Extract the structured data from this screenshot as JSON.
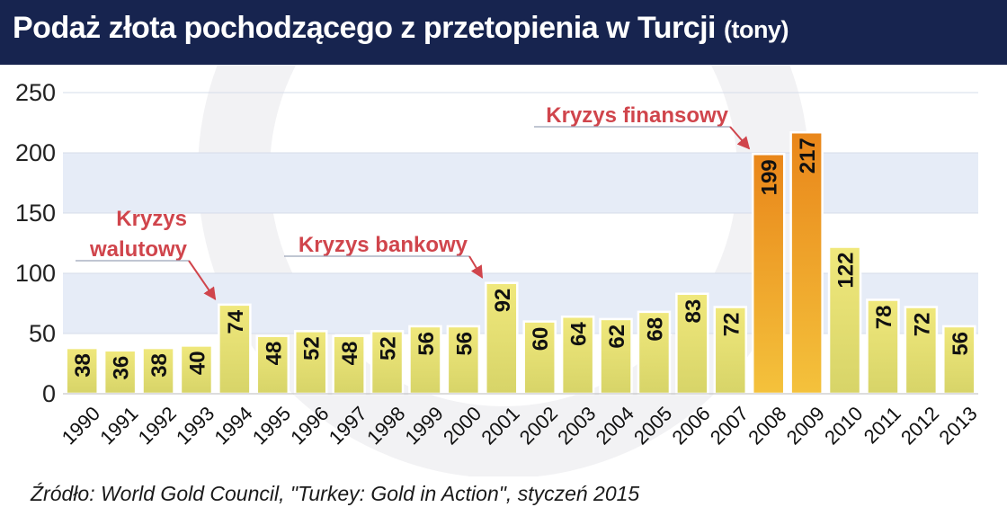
{
  "title": "Podaż złota pochodzącego z przetopienia w Turcji",
  "title_unit": "(tony)",
  "source": "Źródło: World Gold Council, \"Turkey: Gold in Action\", styczeń 2015",
  "colors": {
    "header_bg": "#17244f",
    "bar_top": "#f0e87c",
    "bar_bottom": "#d7d468",
    "bar_peak_top": "#e9861a",
    "bar_peak_bottom": "#f4c23c",
    "annotation": "#d0454c",
    "band": "#e6ecf7"
  },
  "chart_data": {
    "type": "bar",
    "categories": [
      "1990",
      "1991",
      "1992",
      "1993",
      "1994",
      "1995",
      "1996",
      "1997",
      "1998",
      "1999",
      "2000",
      "2001",
      "2002",
      "2003",
      "2004",
      "2005",
      "2006",
      "2007",
      "2008",
      "2009",
      "2010",
      "2011",
      "2012",
      "2013"
    ],
    "values": [
      38,
      36,
      38,
      40,
      74,
      48,
      52,
      48,
      52,
      56,
      56,
      92,
      60,
      64,
      62,
      68,
      83,
      72,
      199,
      217,
      122,
      78,
      72,
      56
    ],
    "ylim": [
      0,
      250
    ],
    "yticks": [
      0,
      50,
      100,
      150,
      200,
      250
    ],
    "annotations": [
      {
        "lines": [
          "Kryzys",
          "walutowy"
        ],
        "category": "1994"
      },
      {
        "lines": [
          "Kryzys bankowy"
        ],
        "category": "2001"
      },
      {
        "lines": [
          "Kryzys finansowy"
        ],
        "category": "2008"
      }
    ]
  }
}
